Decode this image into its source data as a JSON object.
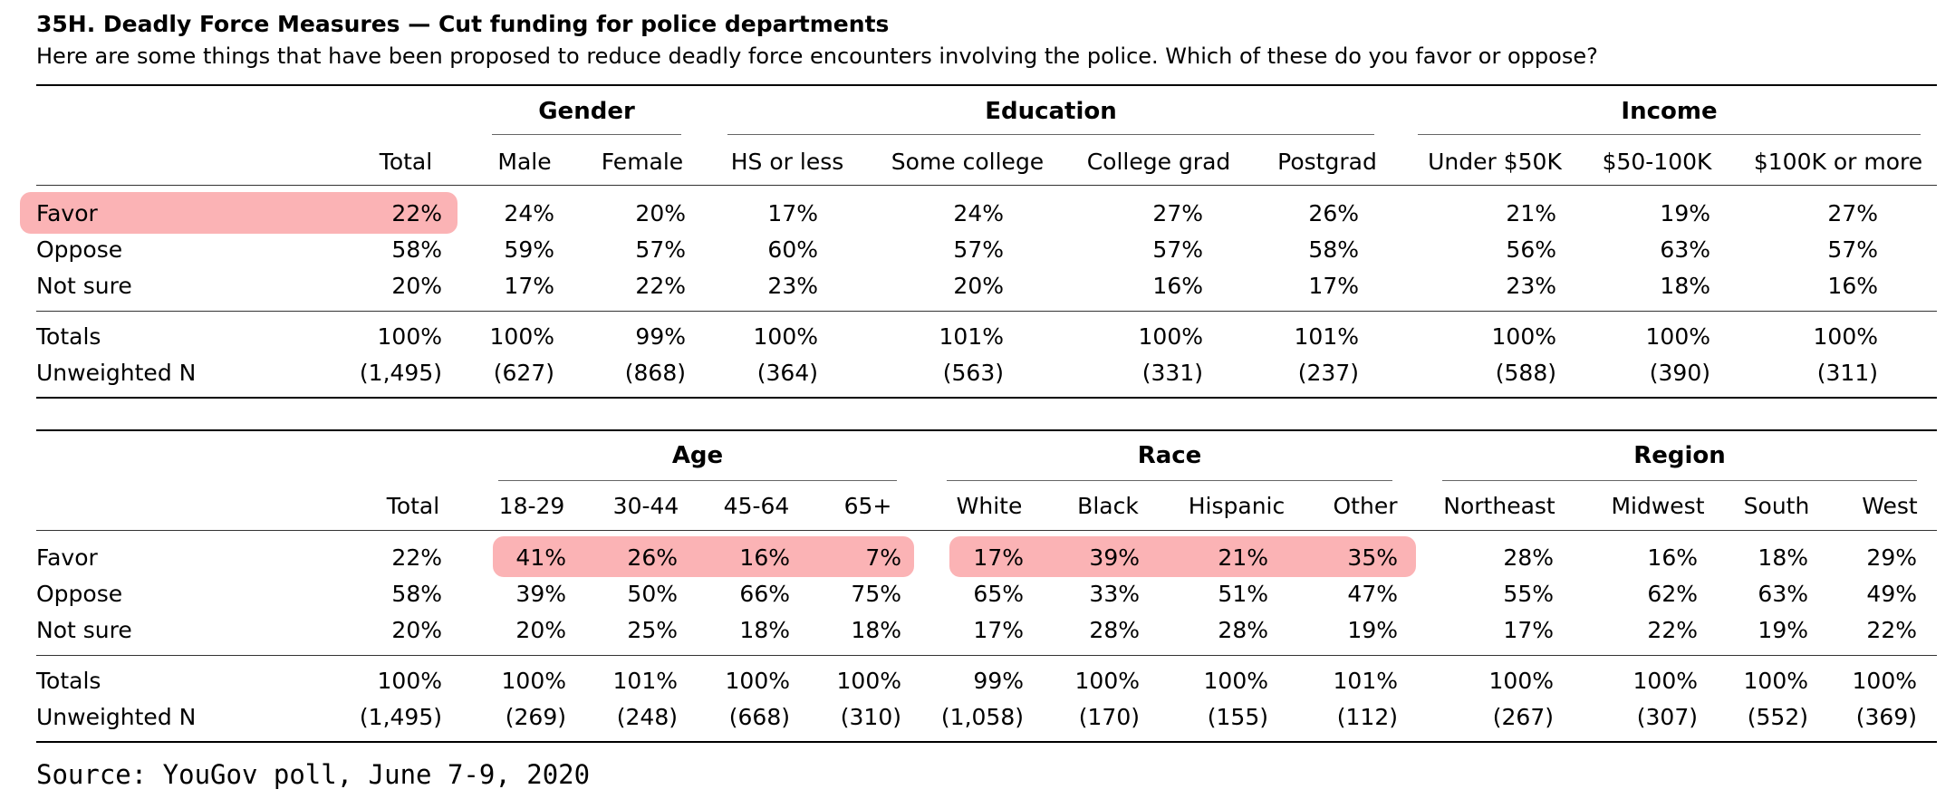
{
  "title": "35H. Deadly Force Measures — Cut funding for police departments",
  "subtitle": "Here are some things that have been proposed to reduce deadly force encounters involving the police. Which of these do you favor or oppose?",
  "source": "Source: YouGov poll, June 7-9, 2020",
  "highlight_color": "#fbb3b5",
  "row_labels": [
    "Favor",
    "Oppose",
    "Not sure",
    "Totals",
    "Unweighted N"
  ],
  "table1": {
    "groups": [
      "Gender",
      "Education",
      "Income"
    ],
    "columns": [
      "Total",
      "Male",
      "Female",
      "HS or less",
      "Some college",
      "College grad",
      "Postgrad",
      "Under $50K",
      "$50-100K",
      "$100K or more"
    ],
    "rows": [
      [
        "22%",
        "24%",
        "20%",
        "17%",
        "24%",
        "27%",
        "26%",
        "21%",
        "19%",
        "27%"
      ],
      [
        "58%",
        "59%",
        "57%",
        "60%",
        "57%",
        "57%",
        "58%",
        "56%",
        "63%",
        "57%"
      ],
      [
        "20%",
        "17%",
        "22%",
        "23%",
        "20%",
        "16%",
        "17%",
        "23%",
        "18%",
        "16%"
      ],
      [
        "100%",
        "100%",
        "99%",
        "100%",
        "101%",
        "100%",
        "101%",
        "100%",
        "100%",
        "100%"
      ],
      [
        "(1,495)",
        "(627)",
        "(868)",
        "(364)",
        "(563)",
        "(331)",
        "(237)",
        "(588)",
        "(390)",
        "(311)"
      ]
    ]
  },
  "table2": {
    "groups": [
      "Age",
      "Race",
      "Region"
    ],
    "columns": [
      "Total",
      "18-29",
      "30-44",
      "45-64",
      "65+",
      "White",
      "Black",
      "Hispanic",
      "Other",
      "Northeast",
      "Midwest",
      "South",
      "West"
    ],
    "rows": [
      [
        "22%",
        "41%",
        "26%",
        "16%",
        "7%",
        "17%",
        "39%",
        "21%",
        "35%",
        "28%",
        "16%",
        "18%",
        "29%"
      ],
      [
        "58%",
        "39%",
        "50%",
        "66%",
        "75%",
        "65%",
        "33%",
        "51%",
        "47%",
        "55%",
        "62%",
        "63%",
        "49%"
      ],
      [
        "20%",
        "20%",
        "25%",
        "18%",
        "18%",
        "17%",
        "28%",
        "28%",
        "19%",
        "17%",
        "22%",
        "19%",
        "22%"
      ],
      [
        "100%",
        "100%",
        "101%",
        "100%",
        "100%",
        "99%",
        "100%",
        "100%",
        "101%",
        "100%",
        "100%",
        "100%",
        "100%"
      ],
      [
        "(1,495)",
        "(269)",
        "(248)",
        "(668)",
        "(310)",
        "(1,058)",
        "(170)",
        "(155)",
        "(112)",
        "(267)",
        "(307)",
        "(552)",
        "(369)"
      ]
    ]
  }
}
